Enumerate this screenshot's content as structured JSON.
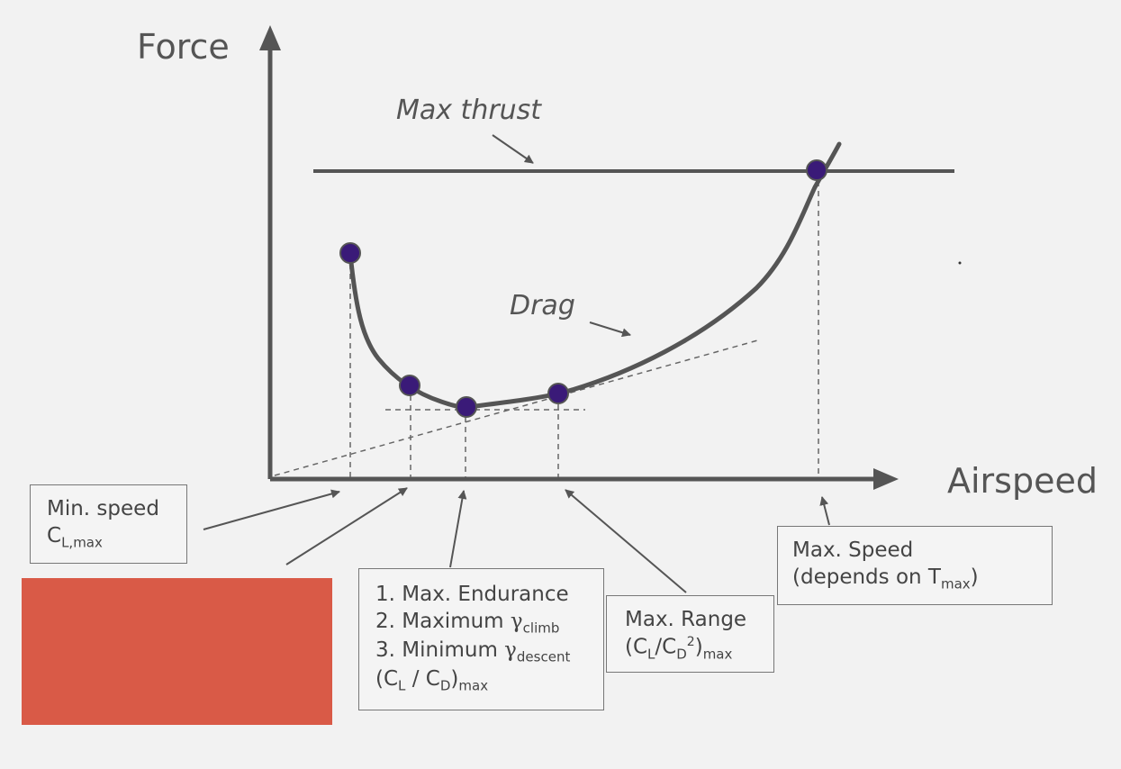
{
  "axes": {
    "y_label": "Force",
    "x_label": "Airspeed"
  },
  "curve_labels": {
    "max_thrust": "Max thrust",
    "drag": "Drag"
  },
  "boxes": {
    "min_speed": {
      "line1": "Min. speed",
      "cl": "C",
      "cl_sub": "L,max"
    },
    "endurance": {
      "item1": "1. Max. Endurance",
      "item2": "2. Maximum ",
      "item2_gamma": "γ",
      "item2_sub": "climb",
      "item3": "3. Minimum ",
      "item3_gamma": "γ",
      "item3_sub": "descent",
      "ratio_open": "(C",
      "ratio_l_sub": "L",
      "ratio_mid": " / C",
      "ratio_d_sub": "D",
      "ratio_close": ")",
      "ratio_max_sub": "max"
    },
    "range": {
      "line1": "Max. Range",
      "ratio_open": "(C",
      "ratio_l_sub": "L",
      "ratio_mid": "/C",
      "ratio_d_sub": "D",
      "ratio_sup": "2",
      "ratio_close": ")",
      "ratio_max_sub": "max"
    },
    "max_speed": {
      "line1": "Max. Speed",
      "line2": "(depends on T",
      "line2_sub": "max",
      "line2_close": ")"
    }
  },
  "colors": {
    "curve": "#555555",
    "point": "#3a1a78",
    "red_block": "#d95a47",
    "background": "#f2f2f2"
  }
}
